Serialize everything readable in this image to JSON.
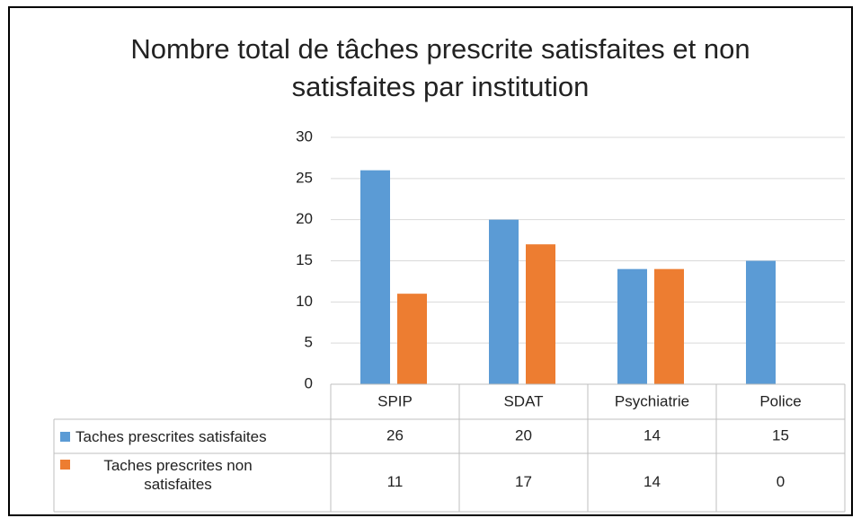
{
  "chart_data": {
    "type": "bar",
    "title": "Nombre total de tâches prescrite satisfaites et non satisfaites par institution",
    "categories": [
      "SPIP",
      "SDAT",
      "Psychiatrie",
      "Police"
    ],
    "series": [
      {
        "name": "Taches prescrites satisfaites",
        "color": "#5b9bd5",
        "values": [
          26,
          20,
          14,
          15
        ]
      },
      {
        "name": "Taches prescrites non satisfaites",
        "color": "#ed7d31",
        "values": [
          11,
          17,
          14,
          0
        ]
      }
    ],
    "ylim": [
      0,
      30
    ],
    "yticks": [
      0,
      5,
      10,
      15,
      20,
      25,
      30
    ],
    "grid": true
  }
}
